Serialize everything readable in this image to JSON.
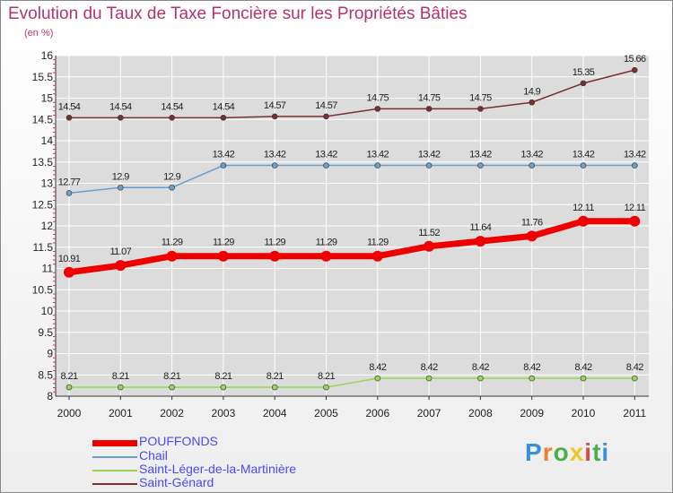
{
  "title": "Evolution du Taux de Taxe Foncière sur les Propriétés Bâties",
  "unit": "(en %)",
  "logo": [
    "P",
    "r",
    "o",
    "x",
    "i",
    "t",
    "i"
  ],
  "logo_colors": [
    "#3a8fd8",
    "#e8812a",
    "#4cae4c",
    "#e8c82a",
    "#d94a4a",
    "#4cae4c",
    "#3a8fd8"
  ],
  "chart_data": {
    "type": "line",
    "x": [
      "2000",
      "2001",
      "2002",
      "2003",
      "2004",
      "2005",
      "2006",
      "2007",
      "2008",
      "2009",
      "2010",
      "2011"
    ],
    "ylim": [
      8,
      16
    ],
    "yticks": [
      "8",
      "8.5",
      "9",
      "9.5",
      "10",
      "10.5",
      "11",
      "11.5",
      "12",
      "12.5",
      "13",
      "13.5",
      "14",
      "14.5",
      "15",
      "15.5",
      "16"
    ],
    "grid": true,
    "series": [
      {
        "name": "POUFFONDS",
        "color": "#ee0000",
        "values": [
          10.91,
          11.07,
          11.29,
          11.29,
          11.29,
          11.29,
          11.29,
          11.52,
          11.64,
          11.76,
          12.11,
          12.11
        ],
        "labels": [
          "10.91",
          "11.07",
          "11.29",
          "11.29",
          "11.29",
          "11.29",
          "11.29",
          "11.52",
          "11.64",
          "11.76",
          "12.11",
          "12.11"
        ]
      },
      {
        "name": "Chail",
        "color": "#6a9fc8",
        "values": [
          12.77,
          12.9,
          12.9,
          13.42,
          13.42,
          13.42,
          13.42,
          13.42,
          13.42,
          13.42,
          13.42,
          13.42
        ],
        "labels": [
          "12.77",
          "12.9",
          "12.9",
          "13.42",
          "13.42",
          "13.42",
          "13.42",
          "13.42",
          "13.42",
          "13.42",
          "13.42",
          "13.42"
        ]
      },
      {
        "name": "Saint-Léger-de-la-Martinière",
        "color": "#9ad457",
        "values": [
          8.21,
          8.21,
          8.21,
          8.21,
          8.21,
          8.21,
          8.42,
          8.42,
          8.42,
          8.42,
          8.42,
          8.42
        ],
        "labels": [
          "8.21",
          "8.21",
          "8.21",
          "8.21",
          "8.21",
          "8.21",
          "8.42",
          "8.42",
          "8.42",
          "8.42",
          "8.42",
          "8.42"
        ]
      },
      {
        "name": "Saint-Génard",
        "color": "#7a3030",
        "values": [
          14.54,
          14.54,
          14.54,
          14.54,
          14.57,
          14.57,
          14.75,
          14.75,
          14.75,
          14.9,
          15.35,
          15.66
        ],
        "labels": [
          "14.54",
          "14.54",
          "14.54",
          "14.54",
          "14.57",
          "14.57",
          "14.75",
          "14.75",
          "14.75",
          "14.9",
          "15.35",
          "15.66"
        ]
      }
    ]
  }
}
